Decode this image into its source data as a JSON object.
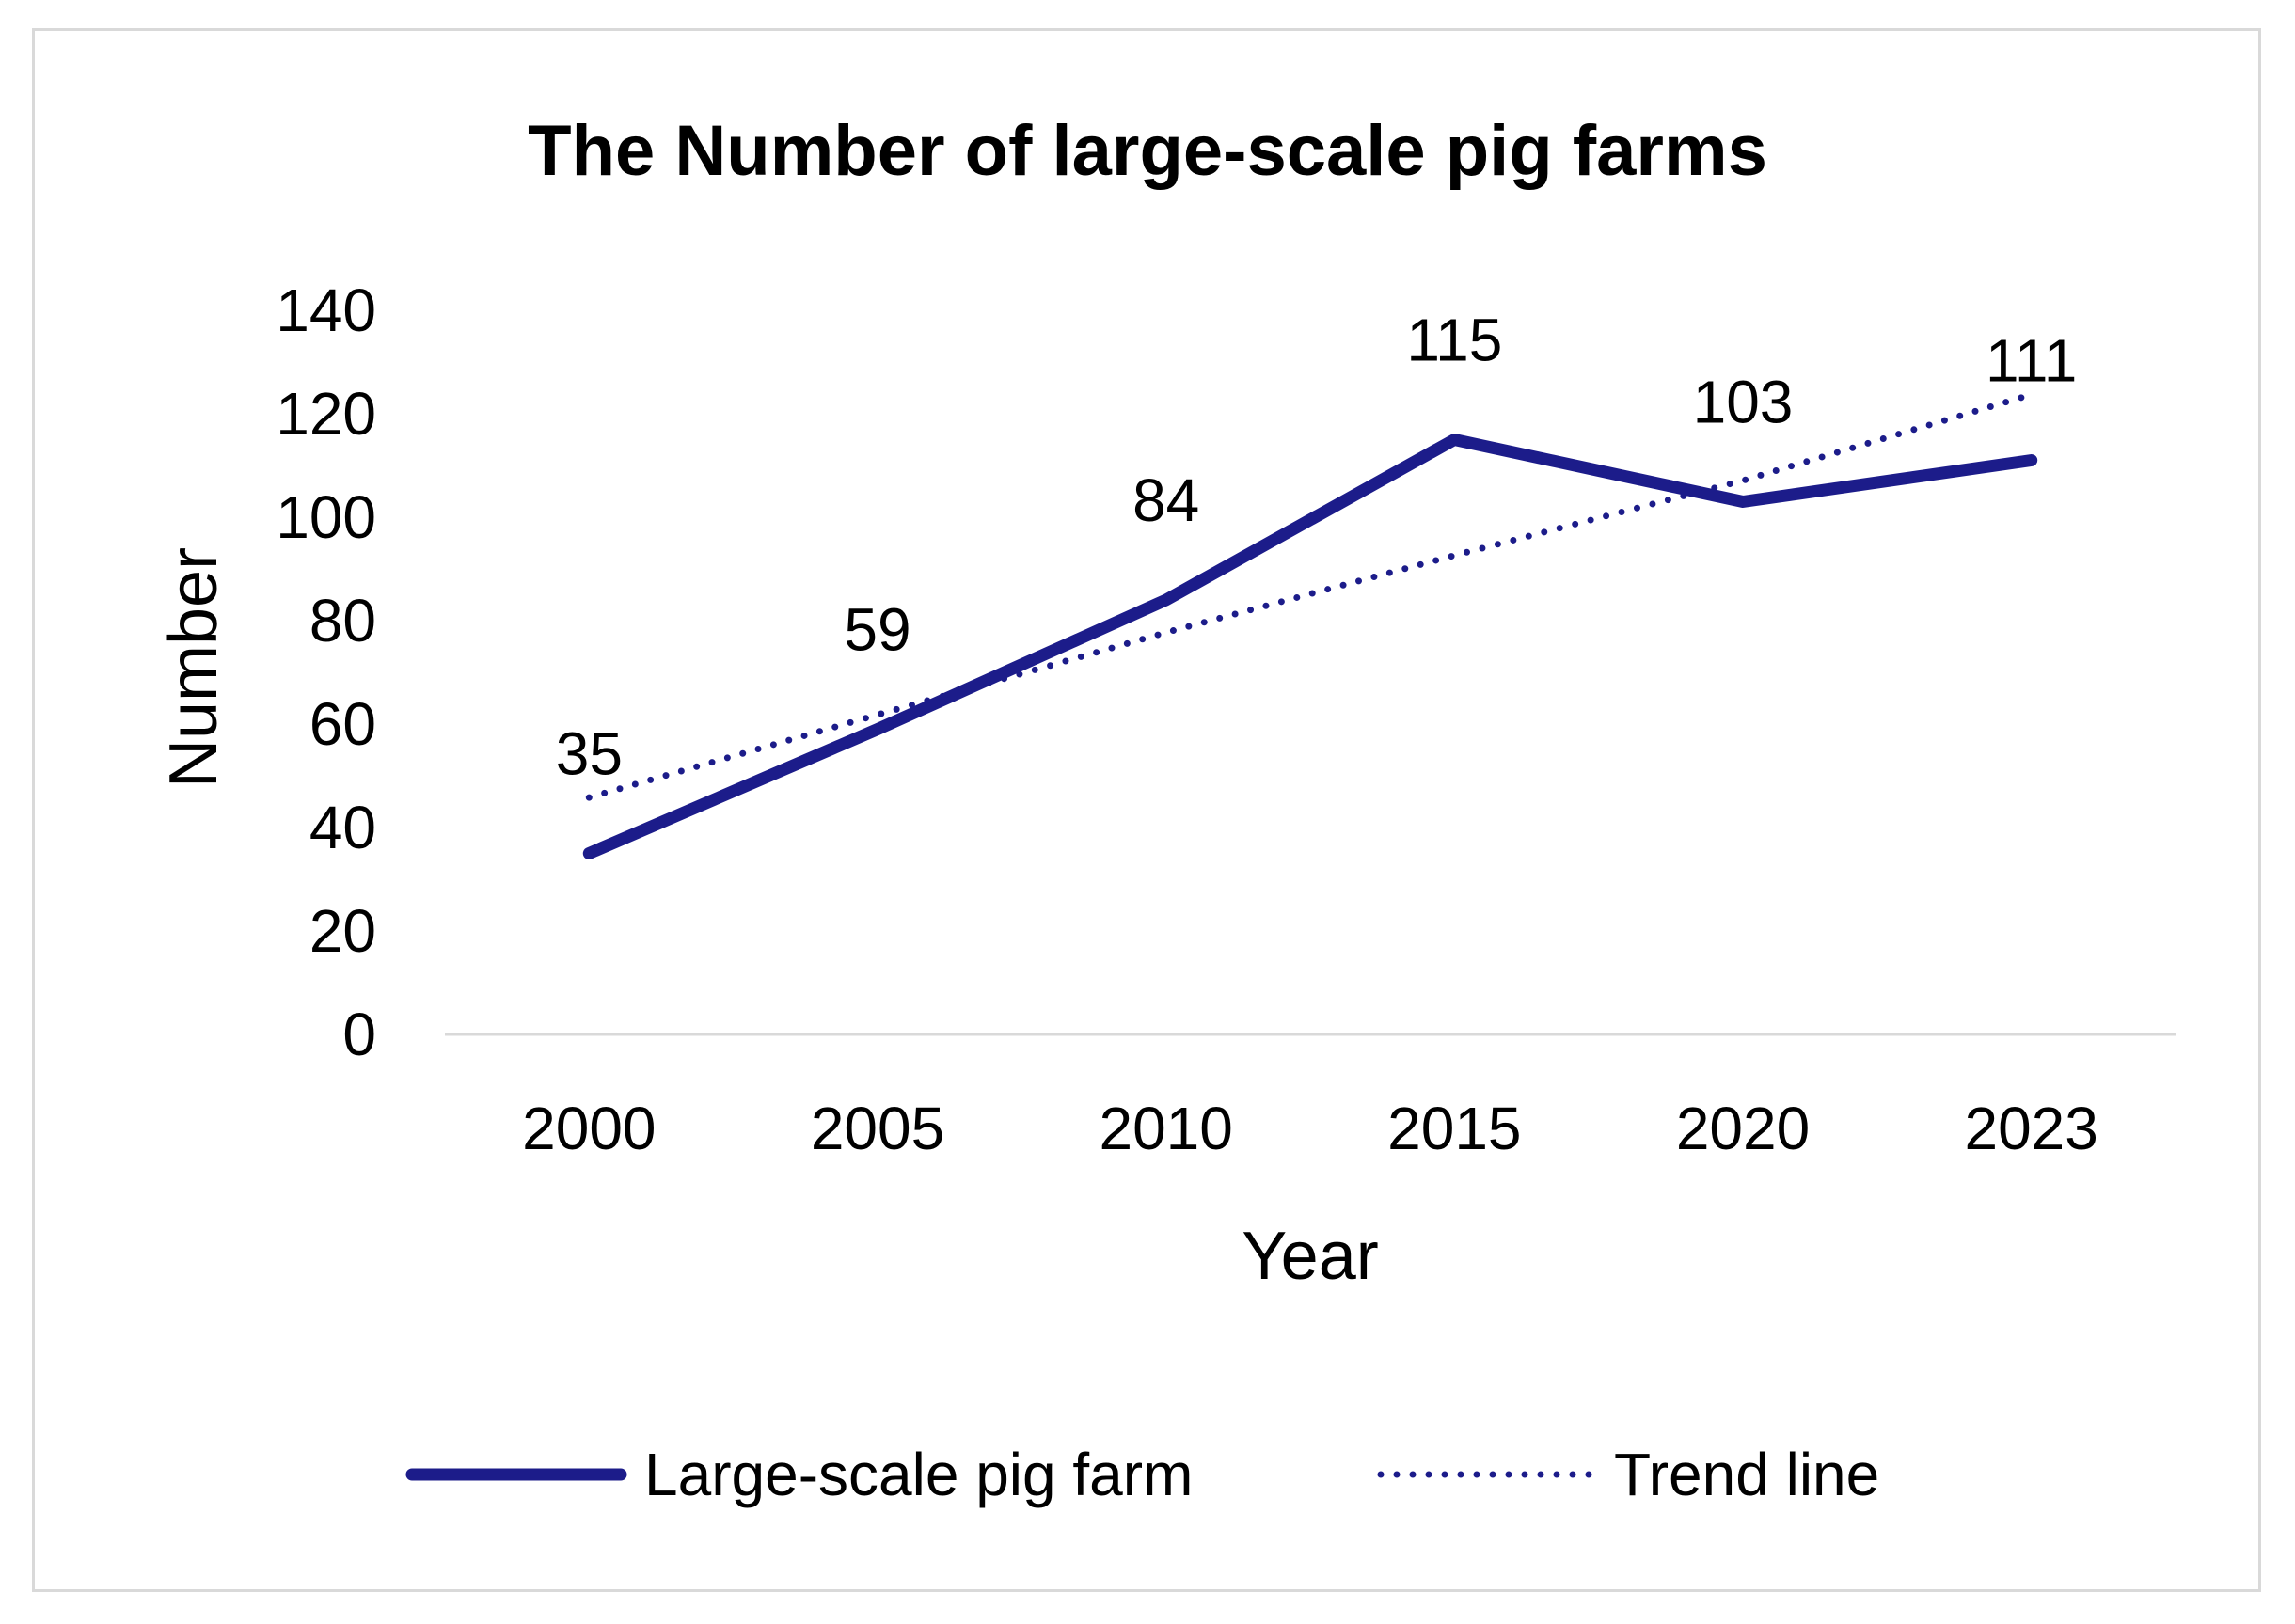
{
  "chart_data": {
    "type": "line",
    "title": "The Number of large-scale pig farms",
    "xlabel": "Year",
    "ylabel": "Number",
    "categories": [
      "2000",
      "2005",
      "2010",
      "2015",
      "2020",
      "2023"
    ],
    "ylim": [
      0,
      140
    ],
    "yticks": [
      0,
      20,
      40,
      60,
      80,
      100,
      120,
      140
    ],
    "ytick_labels": [
      "0",
      "20",
      "40",
      "60",
      "80",
      "100",
      "120",
      "140"
    ],
    "grid": false,
    "legend_position": "bottom",
    "series": [
      {
        "name": "Large-scale pig farm",
        "values": [
          35,
          59,
          84,
          115,
          103,
          111
        ],
        "data_labels": [
          "35",
          "59",
          "84",
          "115",
          "103",
          "111"
        ],
        "color": "#1c1c8a",
        "style": "solid"
      },
      {
        "name": "Trend line",
        "values": [
          45.8,
          61.8,
          77.7,
          92.6,
          107.1,
          123.7
        ],
        "color": "#1c1c8a",
        "style": "dotted"
      }
    ]
  }
}
